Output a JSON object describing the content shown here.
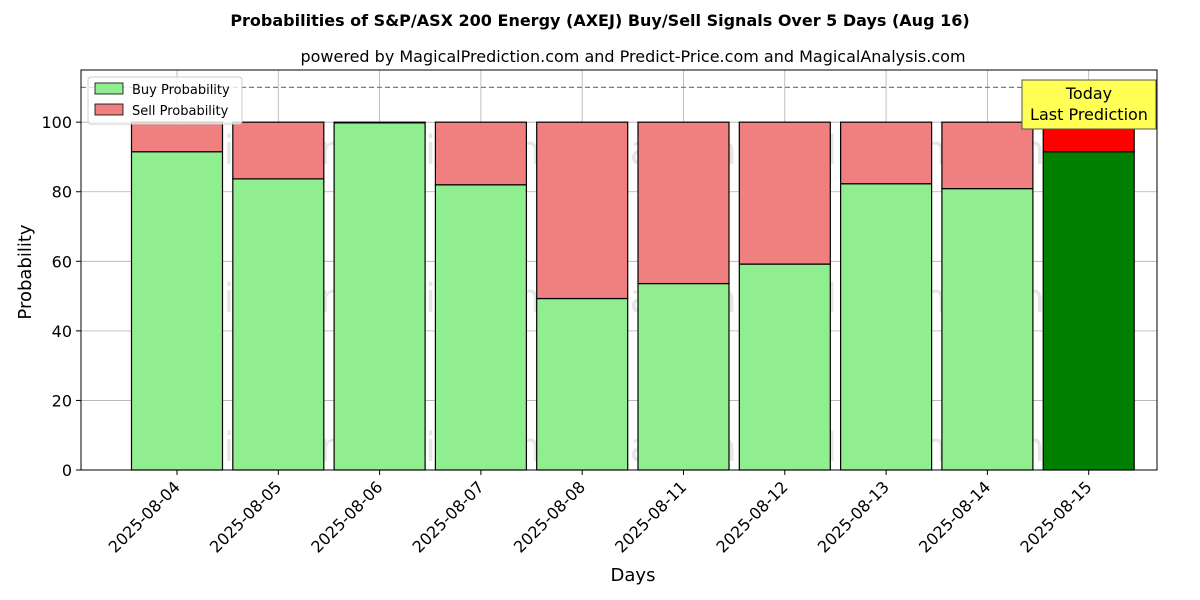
{
  "chart_data": {
    "type": "bar",
    "stacked": true,
    "title": "Probabilities of S&P/ASX 200 Energy (AXEJ) Buy/Sell Signals Over 5 Days (Aug 16)",
    "subtitle": "powered by MagicalPrediction.com and Predict-Price.com and MagicalAnalysis.com",
    "xlabel": "Days",
    "ylabel": "Probability",
    "ylim": [
      0,
      115
    ],
    "yticks": [
      0,
      20,
      40,
      60,
      80,
      100
    ],
    "grid": true,
    "legend_position": "top-left",
    "reference_line": 110,
    "categories": [
      "2025-08-04",
      "2025-08-05",
      "2025-08-06",
      "2025-08-07",
      "2025-08-08",
      "2025-08-11",
      "2025-08-12",
      "2025-08-13",
      "2025-08-14",
      "2025-08-15"
    ],
    "series": [
      {
        "name": "Buy Probability",
        "values": [
          91.5,
          83.7,
          99.8,
          82.0,
          49.3,
          53.6,
          59.2,
          82.3,
          80.9,
          91.5
        ]
      },
      {
        "name": "Sell Probability",
        "values": [
          8.5,
          16.3,
          0.2,
          18.0,
          50.7,
          46.4,
          40.8,
          17.7,
          19.1,
          8.5
        ]
      }
    ],
    "annotation": {
      "line1": "Today",
      "line2": "Last Prediction"
    }
  },
  "colors": {
    "buy": "#90ee90",
    "sell": "#f08080",
    "buy_today": "#008000",
    "sell_today": "#ff0000",
    "annotation_bg": "#ffff55"
  },
  "watermarks": [
    "MagicalAnalysis.com",
    "MagicalPrediction.com"
  ]
}
